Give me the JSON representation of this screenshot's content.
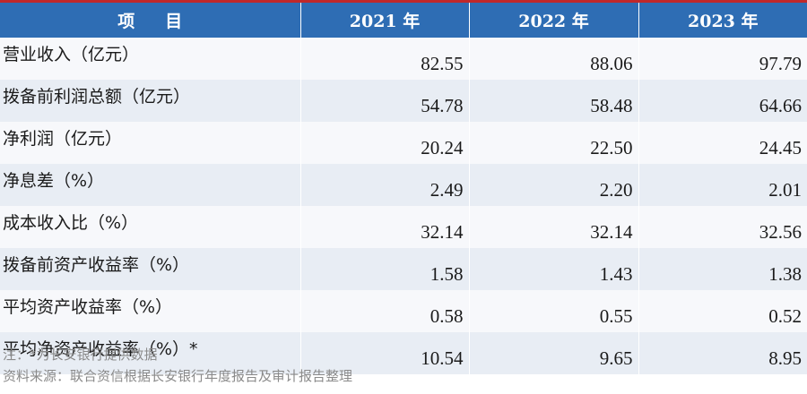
{
  "table": {
    "header": {
      "item": "项目",
      "years": [
        "2021 年",
        "2022 年",
        "2023 年"
      ]
    },
    "rows": [
      {
        "label": "营业收入（亿元）",
        "values": [
          "82.55",
          "88.06",
          "97.79"
        ]
      },
      {
        "label": "拨备前利润总额（亿元）",
        "values": [
          "54.78",
          "58.48",
          "64.66"
        ]
      },
      {
        "label": "净利润（亿元）",
        "values": [
          "20.24",
          "22.50",
          "24.45"
        ]
      },
      {
        "label": "净息差（%）",
        "values": [
          "2.49",
          "2.20",
          "2.01"
        ]
      },
      {
        "label": "成本收入比（%）",
        "values": [
          "32.14",
          "32.14",
          "32.56"
        ]
      },
      {
        "label": "拨备前资产收益率（%）",
        "values": [
          "1.58",
          "1.43",
          "1.38"
        ]
      },
      {
        "label": "平均资产收益率（%）",
        "values": [
          "0.58",
          "0.55",
          "0.52"
        ]
      },
      {
        "label": "平均净资产收益率（%）*",
        "values": [
          "10.54",
          "9.65",
          "8.95"
        ]
      }
    ]
  },
  "notes": {
    "note": "注：*为长安银行提供数据",
    "source": "资料来源：联合资信根据长安银行年度报告及审计报告整理"
  },
  "colors": {
    "header_bg": "#2e6db4",
    "top_rule": "#c0282a",
    "stripe": "#e8edf4"
  }
}
